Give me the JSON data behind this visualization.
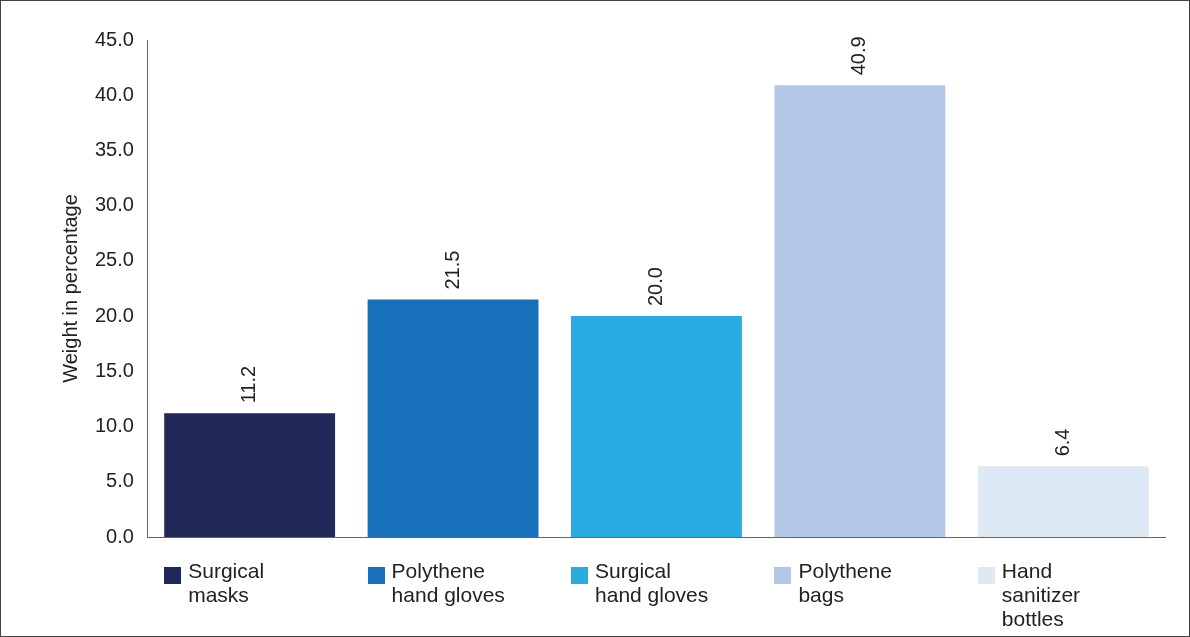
{
  "chart_data": {
    "type": "bar",
    "ylabel": "Weight in percentage",
    "categories": [
      "Surgical masks",
      "Polythene hand gloves",
      "Surgical hand gloves",
      "Polythene bags",
      "Hand sanitizer bottles"
    ],
    "values": [
      11.2,
      21.5,
      20.0,
      40.9,
      6.4
    ],
    "value_labels": [
      "11.2",
      "21.5",
      "20.0",
      "40.9",
      "6.4"
    ],
    "colors": [
      "#1f2859",
      "#1770b9",
      "#29abe2",
      "#b3c7e6",
      "#dde9f5"
    ],
    "ylim": [
      0,
      45
    ],
    "yticks": [
      {
        "value": 0,
        "label": "0.0"
      },
      {
        "value": 5,
        "label": "5.0"
      },
      {
        "value": 10,
        "label": "10.0"
      },
      {
        "value": 15,
        "label": "15.0"
      },
      {
        "value": 20,
        "label": "20.0"
      },
      {
        "value": 25,
        "label": "25.0"
      },
      {
        "value": 30,
        "label": "30.0"
      },
      {
        "value": 35,
        "label": "35.0"
      },
      {
        "value": 40,
        "label": "40.0"
      },
      {
        "value": 45,
        "label": "45.0"
      }
    ],
    "grid": false,
    "legend": false
  }
}
